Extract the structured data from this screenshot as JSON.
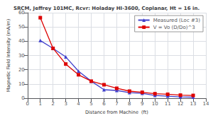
{
  "chart_data": {
    "type": "line",
    "title": "SRCM, Jeffrey 101MC, Rcvr: Holaday HI-3600, Coplanar, Ht = 16 in.",
    "xlabel": "Distance from Machine  (ft)",
    "ylabel": "Magnetic Field Intensity (mA/m)",
    "x": [
      1,
      2,
      3,
      4,
      5,
      6,
      7,
      8,
      9,
      10,
      11,
      12,
      13
    ],
    "series": [
      {
        "name": "Measured (Loc #3)",
        "color": "#4040cc",
        "marker": "triangle",
        "values": [
          40.5,
          35.0,
          29.0,
          19.0,
          12.0,
          6.0,
          5.5,
          4.0,
          3.5,
          2.0,
          1.5,
          1.0,
          0.8
        ]
      },
      {
        "name": "V = Vo (D/Do)^3",
        "color": "#dd0000",
        "marker": "square",
        "values": [
          56.5,
          35.0,
          24.0,
          16.5,
          12.0,
          9.5,
          7.0,
          5.0,
          4.2,
          3.2,
          2.8,
          2.2,
          2.0
        ]
      }
    ],
    "xlim": [
      0,
      14
    ],
    "ylim": [
      0,
      60
    ],
    "xticks": [
      0,
      1,
      2,
      3,
      4,
      5,
      6,
      7,
      8,
      9,
      10,
      11,
      12,
      13,
      14
    ],
    "yticks": [
      0,
      10,
      20,
      30,
      40,
      50,
      60
    ],
    "grid": true,
    "legend": "upper right"
  }
}
